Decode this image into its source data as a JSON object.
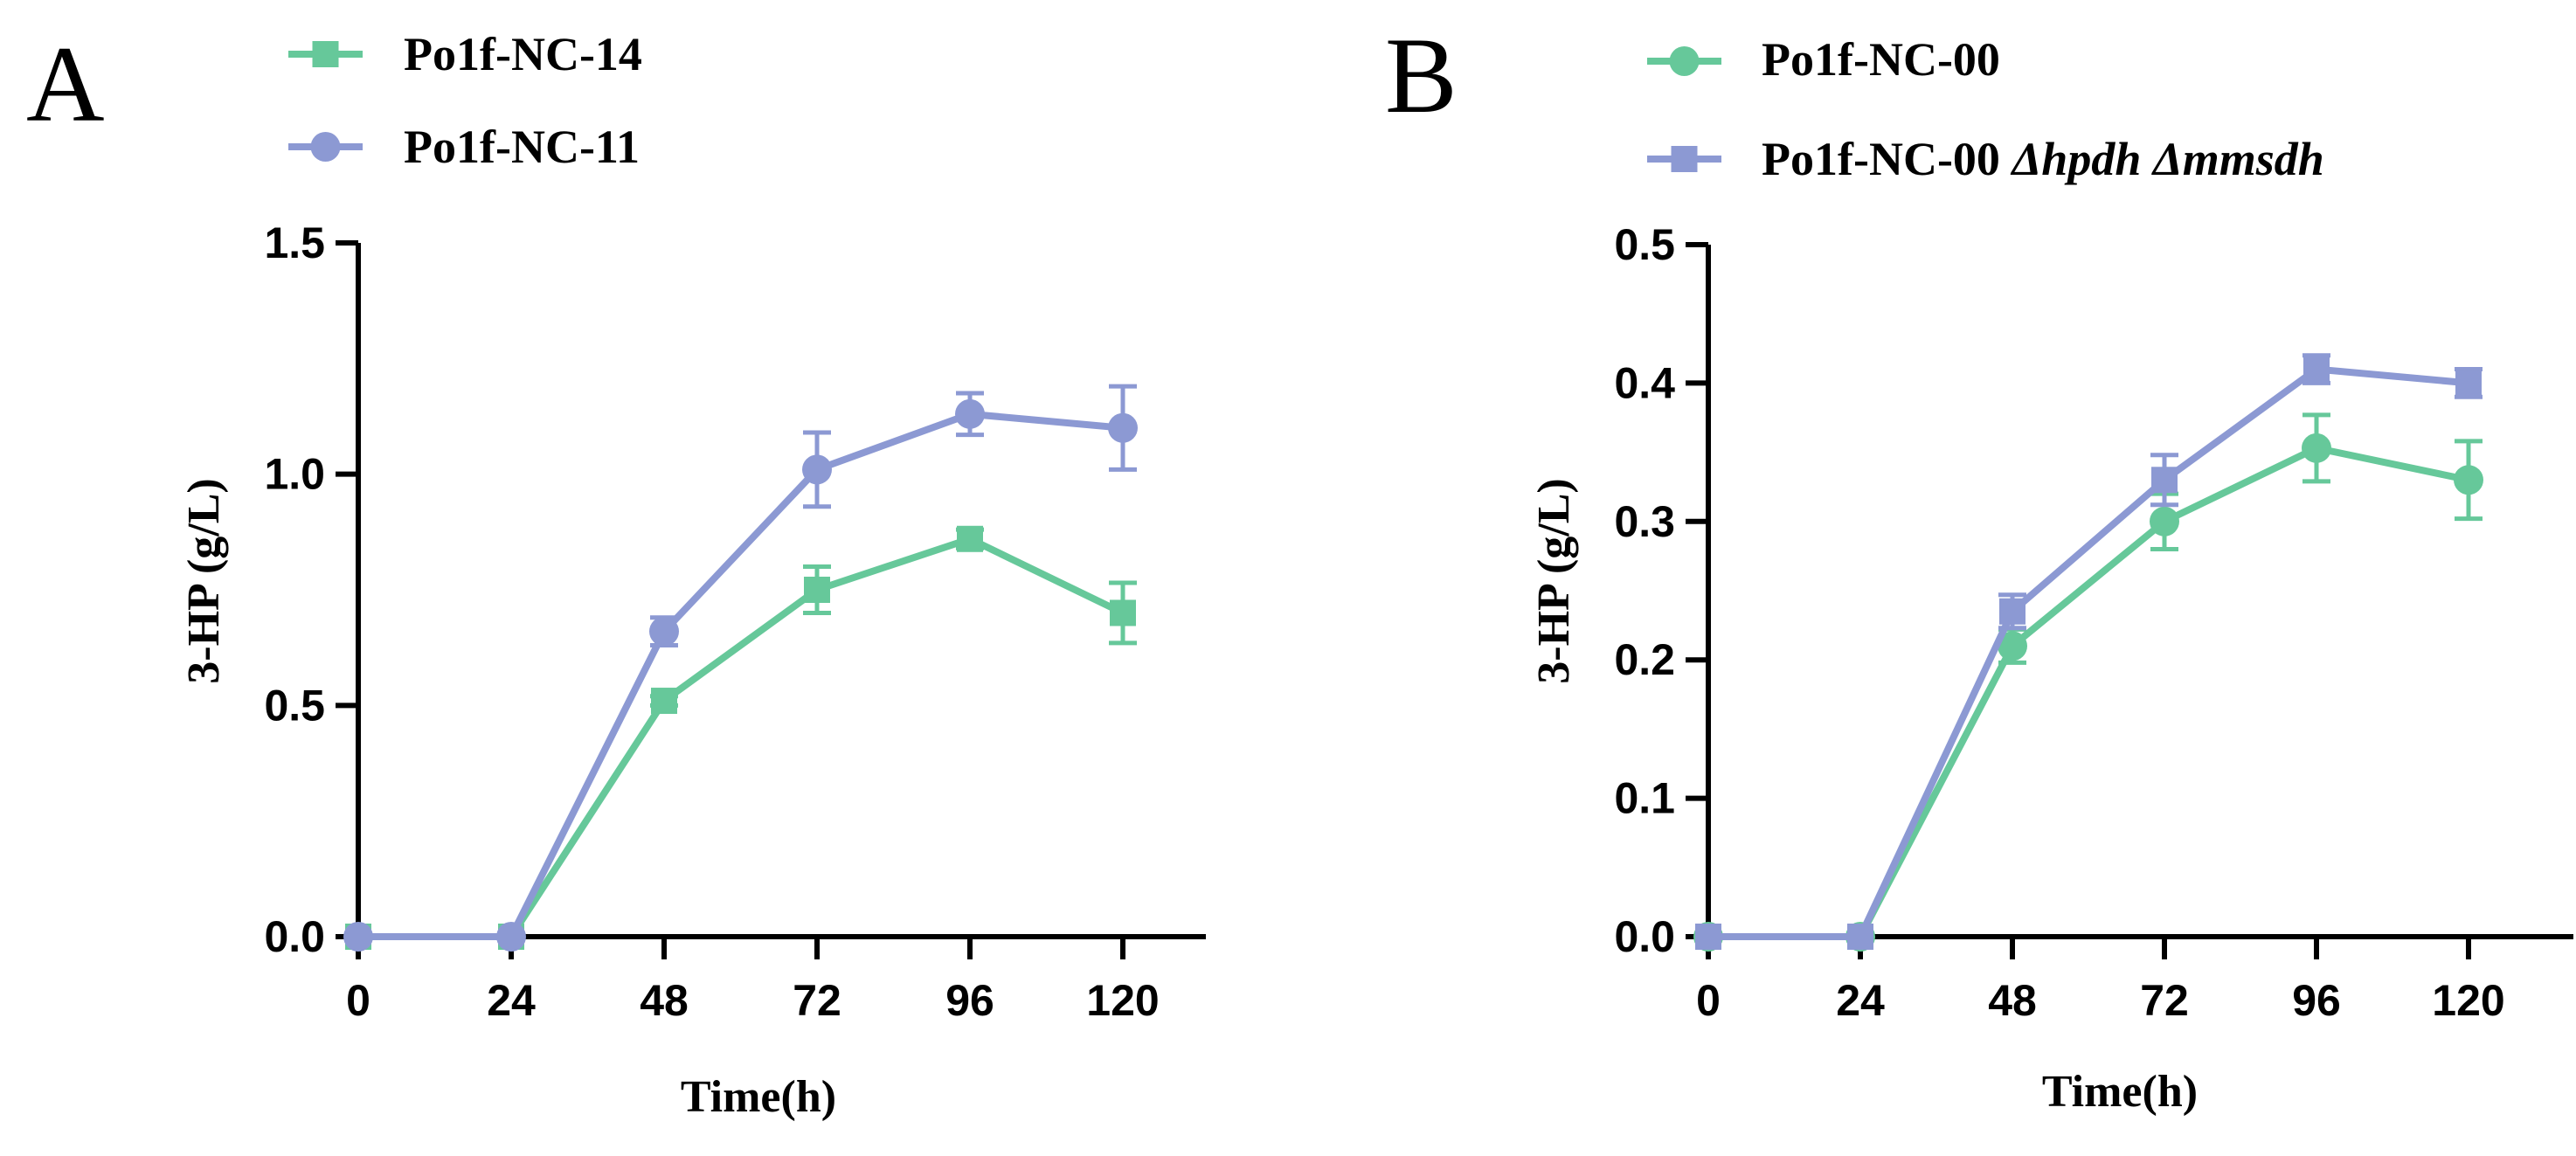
{
  "colors": {
    "green": "#66C89A",
    "purple": "#8C99D3"
  },
  "chart_data": [
    {
      "type": "line",
      "panel_label": "A",
      "xlabel": "Time(h)",
      "ylabel": "3-HP (g/L)",
      "x": [
        0,
        24,
        48,
        72,
        96,
        120
      ],
      "x_tick_labels": [
        "0",
        "24",
        "48",
        "72",
        "96",
        "120"
      ],
      "y_ticks": [
        0,
        0.5,
        1.0,
        1.5
      ],
      "y_tick_labels": [
        "0.0",
        "0.5",
        "1.0",
        "1.5"
      ],
      "ylim": [
        0,
        1.5
      ],
      "grid": false,
      "legend_placement": "top-left",
      "series": [
        {
          "name": "Po1f-NC-14",
          "marker": "square",
          "color": "#66C89A",
          "values": [
            0,
            0,
            0.51,
            0.75,
            0.86,
            0.7
          ],
          "errors": [
            0,
            0,
            0.01,
            0.05,
            0.02,
            0.065
          ]
        },
        {
          "name": "Po1f-NC-11",
          "marker": "circle",
          "color": "#8C99D3",
          "values": [
            0,
            0,
            0.66,
            1.01,
            1.13,
            1.1
          ],
          "errors": [
            0,
            0,
            0.03,
            0.08,
            0.045,
            0.09
          ]
        }
      ]
    },
    {
      "type": "line",
      "panel_label": "B",
      "xlabel": "Time(h)",
      "ylabel": "3-HP (g/L)",
      "x": [
        0,
        24,
        48,
        72,
        96,
        120
      ],
      "x_tick_labels": [
        "0",
        "24",
        "48",
        "72",
        "96",
        "120"
      ],
      "y_ticks": [
        0,
        0.1,
        0.2,
        0.3,
        0.4,
        0.5
      ],
      "y_tick_labels": [
        "0.0",
        "0.1",
        "0.2",
        "0.3",
        "0.4",
        "0.5"
      ],
      "ylim": [
        0,
        0.5
      ],
      "grid": false,
      "legend_placement": "top-left",
      "series": [
        {
          "name": "Po1f-NC-00",
          "name_italic": "",
          "marker": "circle",
          "color": "#66C89A",
          "values": [
            0,
            0,
            0.21,
            0.3,
            0.353,
            0.33
          ],
          "errors": [
            0,
            0,
            0.012,
            0.02,
            0.024,
            0.028
          ]
        },
        {
          "name": "Po1f-NC-00 ",
          "name_italic": "Δhpdh Δmmsdh",
          "marker": "square",
          "color": "#8C99D3",
          "values": [
            0,
            0,
            0.235,
            0.33,
            0.41,
            0.4
          ],
          "errors": [
            0,
            0,
            0.012,
            0.018,
            0.01,
            0.01
          ]
        }
      ]
    }
  ]
}
